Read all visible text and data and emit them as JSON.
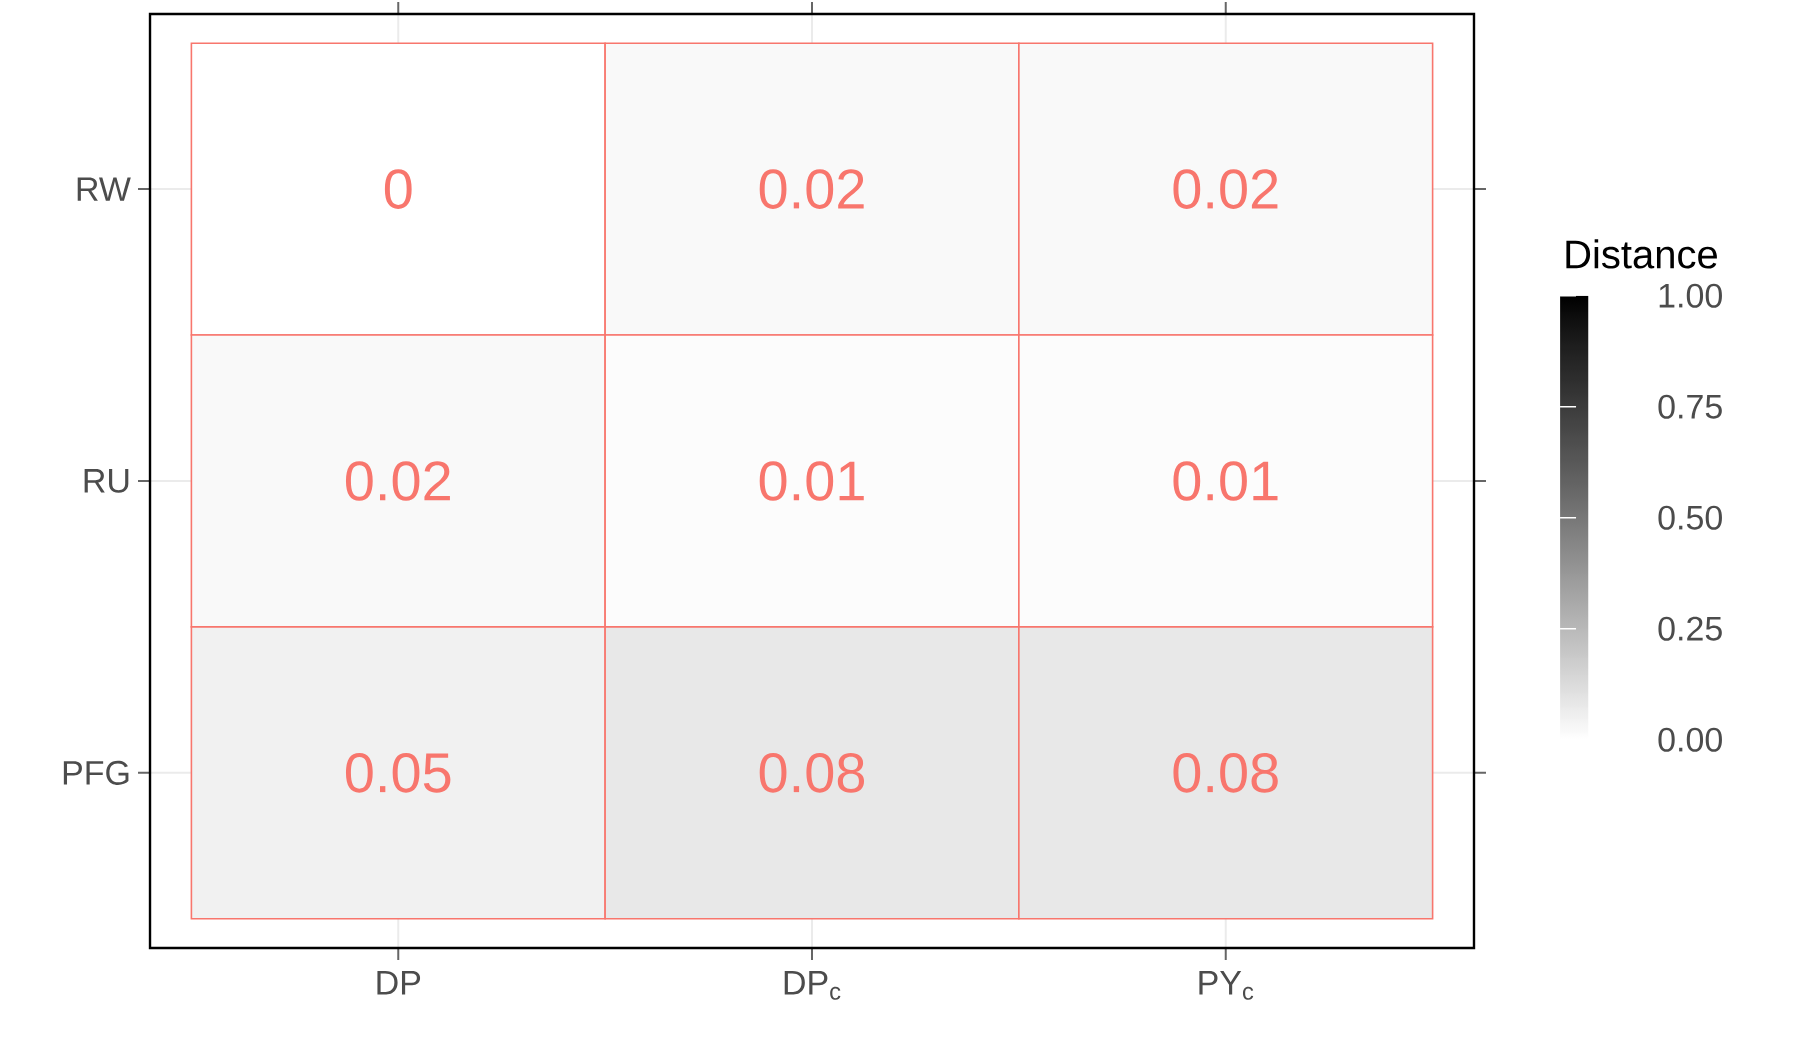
{
  "chart_data": {
    "type": "heatmap",
    "categories": [
      "DP",
      "DP$_{c}$",
      "PY$_{c}$"
    ],
    "y_categories": [
      "RW",
      "RU",
      "PFG"
    ],
    "cells": [
      [
        0,
        0.02,
        0.02
      ],
      [
        0.02,
        0.01,
        0.01
      ],
      [
        0.05,
        0.08,
        0.08
      ]
    ],
    "data_labels": true,
    "color": "#f8766d",
    "clabel": "Distance",
    "clim": [
      0,
      1
    ],
    "cticks": [
      {
        "value": 0,
        "label": "0.00"
      },
      {
        "value": 0.25,
        "label": "0.25"
      },
      {
        "value": 0.5,
        "label": "0.50"
      },
      {
        "value": 0.75,
        "label": "0.75"
      },
      {
        "value": 1,
        "label": "1.00"
      }
    ],
    "grid": true
  }
}
